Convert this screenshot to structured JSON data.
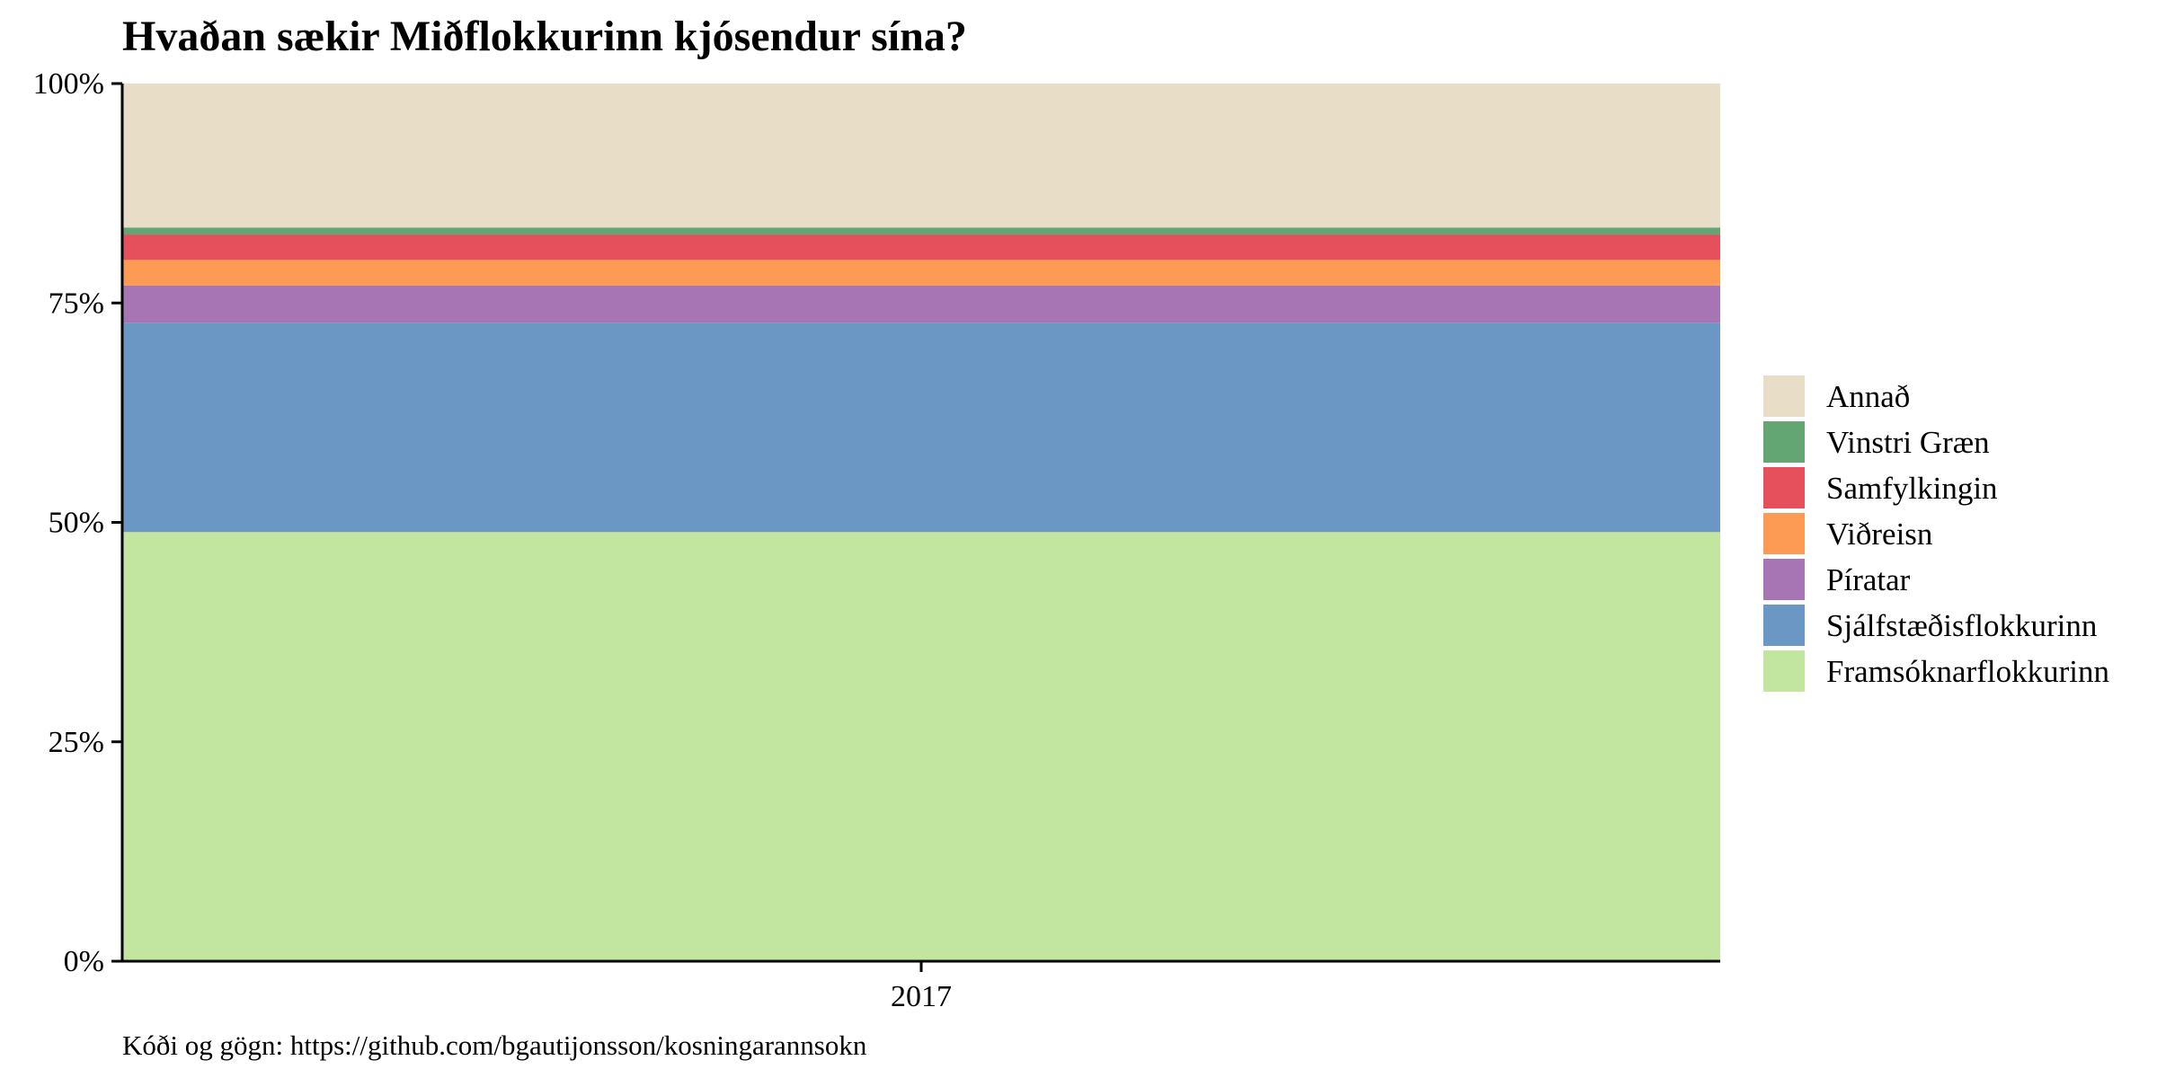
{
  "chart_data": {
    "type": "area",
    "title": "Hvaðan sækir Miðflokkurinn kjósendur sína?",
    "caption": "Kóði og gögn: https://github.com/bgautijonsson/kosningarannsokn",
    "xlabel": "",
    "ylabel": "",
    "x_ticks": [
      "2017"
    ],
    "y_ticks": [
      "0%",
      "25%",
      "50%",
      "75%",
      "100%"
    ],
    "ylim": [
      0,
      100
    ],
    "stacked": true,
    "normalized": true,
    "legend_position": "right",
    "series": [
      {
        "name": "Framsóknarflokkurinn",
        "value": 48.9,
        "color": "#c2e6a0"
      },
      {
        "name": "Sjálfstæðisflokkurinn",
        "value": 23.8,
        "color": "#6b97c4"
      },
      {
        "name": "Píratar",
        "value": 4.3,
        "color": "#a775b4"
      },
      {
        "name": "Viðreisn",
        "value": 2.9,
        "color": "#fd9b55"
      },
      {
        "name": "Samfylkingin",
        "value": 2.9,
        "color": "#e5505c"
      },
      {
        "name": "Vinstri Græn",
        "value": 0.8,
        "color": "#64a673"
      },
      {
        "name": "Annað",
        "value": 16.4,
        "color": "#e8dec8"
      }
    ],
    "legend_order": [
      "Annað",
      "Vinstri Græn",
      "Samfylkingin",
      "Viðreisn",
      "Píratar",
      "Sjálfstæðisflokkurinn",
      "Framsóknarflokkurinn"
    ],
    "grid": false
  }
}
